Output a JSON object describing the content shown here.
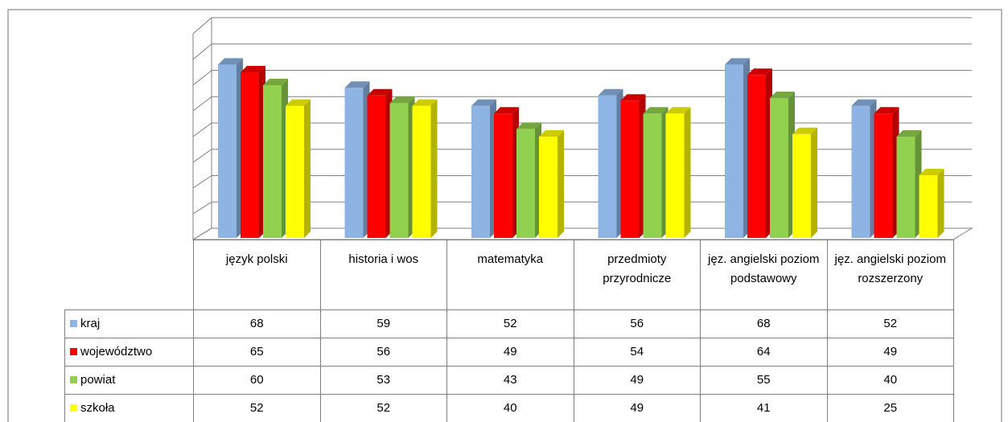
{
  "chart_data": {
    "type": "bar3d",
    "categories": [
      "język polski",
      "historia i wos",
      "matematyka",
      "przedmioty przyrodnicze",
      "jęz. angielski poziom podstawowy",
      "jęz. angielski poziom rozszerzony"
    ],
    "series": [
      {
        "name": "kraj",
        "color": "#8db4e2",
        "values": [
          68,
          59,
          52,
          56,
          68,
          52
        ]
      },
      {
        "name": "województwo",
        "color": "#ff0000",
        "values": [
          65,
          56,
          49,
          54,
          64,
          49
        ]
      },
      {
        "name": "powiat",
        "color": "#92d050",
        "values": [
          60,
          53,
          43,
          49,
          55,
          40
        ]
      },
      {
        "name": "szkoła",
        "color": "#ffff00",
        "values": [
          52,
          52,
          40,
          49,
          41,
          25
        ]
      }
    ],
    "ylim": [
      0,
      80
    ],
    "yticks": [
      0,
      10,
      20,
      30,
      40,
      50,
      60,
      70,
      80
    ],
    "grid": true
  }
}
